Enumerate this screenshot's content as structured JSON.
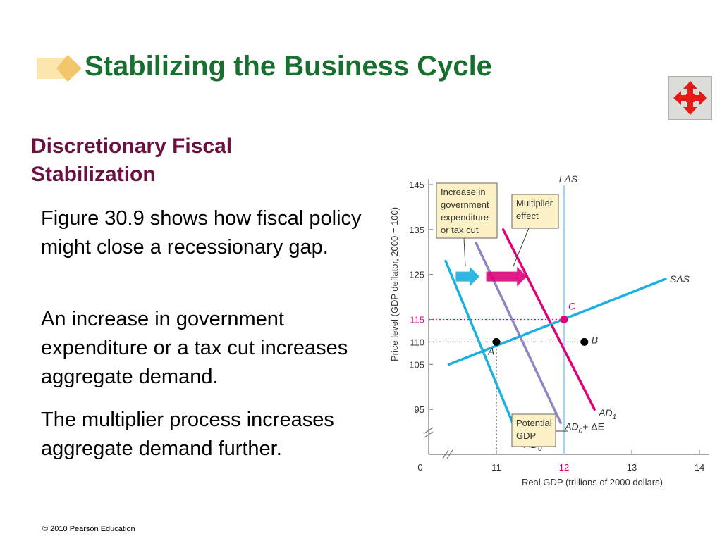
{
  "slide": {
    "title": "Stabilizing the Business Cycle",
    "subtitle": "Discretionary Fiscal Stabilization",
    "paragraphs": [
      "Figure 30.9 shows how fiscal policy might close a recessionary gap.",
      "An increase in government expenditure or a tax cut increases aggregate demand.",
      "The multiplier process increases aggregate demand further."
    ],
    "footer": "© 2010 Pearson Education",
    "nav_icon": "four-way-arrow-icon"
  },
  "colors": {
    "title": "#17702f",
    "subtitle": "#6b1040",
    "ad0": "#1ab0e0",
    "ad_mid": "#8e86c4",
    "ad1": "#e0007a",
    "sas": "#1ab0e0",
    "las": "#a9d6ec",
    "callout_bg": "#fdf2c6"
  },
  "chart_data": {
    "type": "line",
    "xlabel": "Real GDP (trillions of 2000 dollars)",
    "ylabel": "Price level (GDP deflator, 2000 = 100)",
    "xlim": [
      10,
      14
    ],
    "ylim": [
      85,
      145
    ],
    "x_ticks": [
      {
        "value": 11,
        "label": "11"
      },
      {
        "value": 12,
        "label": "12"
      },
      {
        "value": 13,
        "label": "13"
      },
      {
        "value": 14,
        "label": "14"
      }
    ],
    "y_ticks": [
      {
        "value": 95,
        "label": "95"
      },
      {
        "value": 105,
        "label": "105"
      },
      {
        "value": 110,
        "label": "110"
      },
      {
        "value": 115,
        "label": "115"
      },
      {
        "value": 125,
        "label": "125"
      },
      {
        "value": 135,
        "label": "135"
      },
      {
        "value": 145,
        "label": "145"
      }
    ],
    "origin_label": "0",
    "curves": [
      {
        "id": "ad0",
        "color_key": "ad0",
        "points": [
          [
            10.25,
            128
          ],
          [
            11.35,
            88
          ]
        ],
        "label_main": "AD",
        "label_sub": "0"
      },
      {
        "id": "ad-mid",
        "color_key": "ad_mid",
        "points": [
          [
            10.7,
            132
          ],
          [
            11.95,
            92
          ]
        ],
        "label_main": "AD",
        "label_sub": "0",
        "label_tail": "+ ΔE"
      },
      {
        "id": "ad1",
        "color_key": "ad1",
        "points": [
          [
            11.1,
            135
          ],
          [
            12.45,
            95
          ]
        ],
        "label_main": "AD",
        "label_sub": "1"
      },
      {
        "id": "sas",
        "color_key": "sas",
        "points": [
          [
            10.3,
            105
          ],
          [
            13.5,
            124
          ]
        ],
        "label_main": "SAS"
      }
    ],
    "las": {
      "x": 12,
      "label": "LAS"
    },
    "points": [
      {
        "label": "A",
        "x": 11,
        "y": 110,
        "color": "#000000"
      },
      {
        "label": "B",
        "x": 12.3,
        "y": 110,
        "color": "#000000"
      },
      {
        "label": "C",
        "x": 12,
        "y": 115,
        "color": "#e0007a"
      }
    ],
    "arrows": [
      {
        "color_key": "ad0",
        "x_from": 10.4,
        "x_to": 10.75,
        "y": 125
      },
      {
        "color_key": "ad1",
        "x_from": 10.85,
        "x_to": 11.45,
        "y": 125
      }
    ],
    "callouts": [
      {
        "id": "increase-callout",
        "lines": [
          "Increase in",
          "government",
          "expenditure",
          "or tax cut"
        ]
      },
      {
        "id": "multiplier-callout",
        "lines": [
          "Multiplier",
          "effect"
        ]
      },
      {
        "id": "potential-callout",
        "lines": [
          "Potential",
          "GDP"
        ]
      }
    ]
  }
}
